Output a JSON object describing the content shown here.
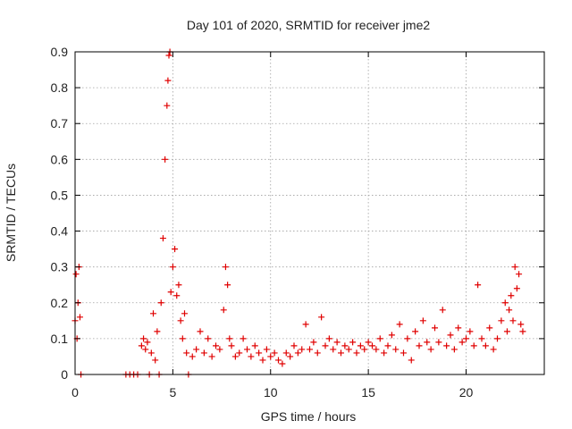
{
  "colors": {
    "series": "#e00000",
    "background": "#ffffff",
    "axis": "#000000",
    "grid": "#a0a0a0"
  },
  "chart_data": {
    "type": "scatter",
    "title": "Day 101 of 2020, SRMTID for receiver jme2",
    "xlabel": "GPS time / hours",
    "ylabel": "SRMTID / TECUs",
    "xlim": [
      0,
      24
    ],
    "ylim": [
      0,
      0.9
    ],
    "xticks": [
      0,
      5,
      10,
      15,
      20
    ],
    "xtick_labels": [
      "0",
      "5",
      "10",
      "15",
      "20"
    ],
    "yticks": [
      0,
      0.1,
      0.2,
      0.3,
      0.4,
      0.5,
      0.6,
      0.7,
      0.8,
      0.9
    ],
    "ytick_labels": [
      "0",
      "0.1",
      "0.2",
      "0.3",
      "0.4",
      "0.5",
      "0.6",
      "0.7",
      "0.8",
      "0.9"
    ],
    "grid": true,
    "marker": "plus",
    "series": [
      {
        "name": "jme2",
        "color": "#e00000",
        "x": [
          0.0,
          0.05,
          0.1,
          0.15,
          0.2,
          0.25,
          0.3,
          2.6,
          2.8,
          3.0,
          3.2,
          3.4,
          3.5,
          3.6,
          3.7,
          3.8,
          3.9,
          4.0,
          4.1,
          4.2,
          4.3,
          4.4,
          4.5,
          4.6,
          4.7,
          4.75,
          4.8,
          4.85,
          4.9,
          5.0,
          5.1,
          5.2,
          5.3,
          5.4,
          5.5,
          5.6,
          5.7,
          5.8,
          6.0,
          6.2,
          6.4,
          6.6,
          6.8,
          7.0,
          7.2,
          7.4,
          7.6,
          7.7,
          7.8,
          7.9,
          8.0,
          8.2,
          8.4,
          8.6,
          8.8,
          9.0,
          9.2,
          9.4,
          9.6,
          9.8,
          10.0,
          10.2,
          10.4,
          10.6,
          10.8,
          11.0,
          11.2,
          11.4,
          11.6,
          11.8,
          12.0,
          12.2,
          12.4,
          12.6,
          12.8,
          13.0,
          13.2,
          13.4,
          13.6,
          13.8,
          14.0,
          14.2,
          14.4,
          14.6,
          14.8,
          15.0,
          15.2,
          15.4,
          15.6,
          15.8,
          16.0,
          16.2,
          16.4,
          16.6,
          16.8,
          17.0,
          17.2,
          17.4,
          17.6,
          17.8,
          18.0,
          18.2,
          18.4,
          18.6,
          18.8,
          19.0,
          19.2,
          19.4,
          19.6,
          19.8,
          20.0,
          20.2,
          20.4,
          20.6,
          20.8,
          21.0,
          21.2,
          21.4,
          21.6,
          21.8,
          22.0,
          22.1,
          22.2,
          22.3,
          22.4,
          22.5,
          22.6,
          22.7,
          22.8,
          22.9
        ],
        "y": [
          0.15,
          0.28,
          0.1,
          0.2,
          0.3,
          0.16,
          0.0,
          0.0,
          0.0,
          0.0,
          0.0,
          0.08,
          0.1,
          0.07,
          0.09,
          0.0,
          0.06,
          0.17,
          0.04,
          0.12,
          0.0,
          0.2,
          0.38,
          0.6,
          0.75,
          0.82,
          0.89,
          0.9,
          0.23,
          0.3,
          0.35,
          0.22,
          0.25,
          0.15,
          0.1,
          0.17,
          0.06,
          0.0,
          0.05,
          0.07,
          0.12,
          0.06,
          0.1,
          0.05,
          0.08,
          0.07,
          0.18,
          0.3,
          0.25,
          0.1,
          0.08,
          0.05,
          0.06,
          0.1,
          0.07,
          0.05,
          0.08,
          0.06,
          0.04,
          0.07,
          0.05,
          0.06,
          0.04,
          0.03,
          0.06,
          0.05,
          0.08,
          0.06,
          0.07,
          0.14,
          0.07,
          0.09,
          0.06,
          0.16,
          0.08,
          0.1,
          0.07,
          0.09,
          0.06,
          0.08,
          0.07,
          0.09,
          0.06,
          0.08,
          0.07,
          0.09,
          0.08,
          0.07,
          0.1,
          0.06,
          0.08,
          0.11,
          0.07,
          0.14,
          0.06,
          0.1,
          0.04,
          0.12,
          0.08,
          0.15,
          0.09,
          0.07,
          0.13,
          0.09,
          0.18,
          0.08,
          0.11,
          0.07,
          0.13,
          0.09,
          0.1,
          0.12,
          0.08,
          0.25,
          0.1,
          0.08,
          0.13,
          0.07,
          0.1,
          0.15,
          0.2,
          0.12,
          0.18,
          0.22,
          0.15,
          0.3,
          0.24,
          0.28,
          0.14,
          0.12
        ]
      }
    ]
  }
}
